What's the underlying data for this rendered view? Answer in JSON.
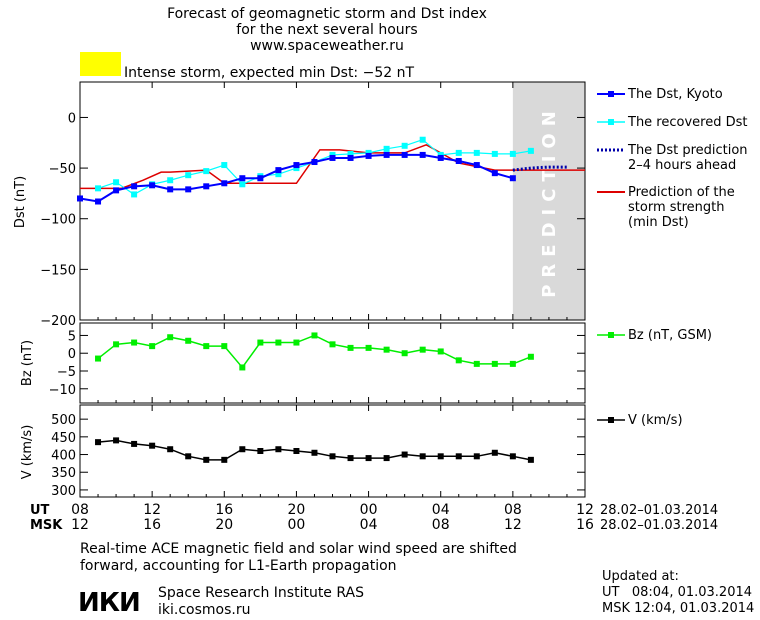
{
  "title": {
    "lines": [
      "Forecast of geomagnetic storm and Dst index",
      "for the next several hours",
      "www.spaceweather.ru"
    ]
  },
  "storm_alert": {
    "text": "Intense storm, expected min Dst: −52 nT",
    "color": "#ffff00"
  },
  "prediction_label": "PREDICTION",
  "legends": {
    "dst_kyoto": "The Dst, Kyoto",
    "dst_recovered": "The recovered Dst",
    "dst_prediction": [
      "The Dst prediction",
      "2–4 hours ahead"
    ],
    "storm_prediction": [
      "Prediction of the",
      "storm strength",
      "(min Dst)"
    ],
    "bz": "Bz (nT, GSM)",
    "v": "V (km/s)"
  },
  "time_axis": {
    "ut_label": "UT",
    "msk_label": "MSK",
    "ut_ticks": [
      "08",
      "12",
      "16",
      "20",
      "00",
      "04",
      "08",
      "12"
    ],
    "msk_ticks": [
      "12",
      "16",
      "20",
      "00",
      "04",
      "08",
      "12",
      "16"
    ],
    "date_range": "28.02–01.03.2014"
  },
  "footer": {
    "note_lines": [
      "Real-time ACE magnetic field and solar wind speed are shifted",
      "forward, accounting for L1-Earth propagation"
    ],
    "logo_text": "ИКИ",
    "institute": "Space Research Institute RAS",
    "site": "iki.cosmos.ru",
    "updated_label": "Updated at:",
    "updated_ut": "UT   08:04, 01.03.2014",
    "updated_msk": "MSK 12:04, 01.03.2014"
  },
  "colors": {
    "kyoto": "#0000ff",
    "recovered": "#00ffff",
    "prediction_dots": "#0000aa",
    "storm_line": "#dd0000",
    "bz": "#00ee00",
    "v": "#000000",
    "prediction_zone": "#d9d9d9"
  },
  "chart_data": [
    {
      "type": "line",
      "ylabel": "Dst (nT)",
      "xlim": [
        0,
        28
      ],
      "ylim": [
        -200,
        35
      ],
      "yticks": [
        0,
        -50,
        -100,
        -150,
        -200
      ],
      "prediction_start": 24,
      "series": [
        {
          "name": "The Dst, Kyoto",
          "x": [
            0,
            1,
            2,
            3,
            4,
            5,
            6,
            7,
            8,
            9,
            10,
            11,
            12,
            13,
            14,
            15,
            16,
            17,
            18,
            19,
            20,
            21,
            22,
            23,
            24
          ],
          "y": [
            -80,
            -83,
            -72,
            -68,
            -67,
            -71,
            -71,
            -68,
            -65,
            -60,
            -60,
            -52,
            -47,
            -44,
            -40,
            -40,
            -38,
            -37,
            -37,
            -37,
            -40,
            -43,
            -47,
            -55,
            -60
          ]
        },
        {
          "name": "The recovered Dst",
          "x": [
            1,
            2,
            3,
            4,
            5,
            6,
            7,
            8,
            9,
            10,
            11,
            12,
            13,
            14,
            15,
            16,
            17,
            18,
            19,
            20,
            21,
            22,
            23,
            24,
            25
          ],
          "y": [
            -70,
            -64,
            -76,
            -66,
            -62,
            -57,
            -53,
            -47,
            -66,
            -58,
            -56,
            -50,
            -44,
            -37,
            -36,
            -35,
            -31,
            -28,
            -22,
            -37,
            -35,
            -35,
            -36,
            -36,
            -33
          ]
        },
        {
          "name": "The Dst prediction 2–4 hours ahead",
          "x": [
            24,
            25,
            26,
            27
          ],
          "y": [
            -52,
            -50,
            -49,
            -49
          ]
        },
        {
          "name": "Prediction of the storm strength (min Dst)",
          "x": [
            0,
            2.3,
            3.5,
            4.5,
            5,
            7,
            8,
            12,
            13.3,
            14.4,
            16,
            18,
            19.2,
            20,
            21,
            23,
            24,
            28
          ],
          "y": [
            -70,
            -70,
            -62,
            -54,
            -54,
            -52,
            -65,
            -65,
            -32,
            -32,
            -35,
            -35,
            -27,
            -35,
            -45,
            -52,
            -52,
            -52
          ]
        }
      ]
    },
    {
      "type": "line",
      "ylabel": "Bz (nT)",
      "xlim": [
        0,
        28
      ],
      "ylim": [
        -14,
        8.5
      ],
      "yticks": [
        5,
        0,
        -5,
        -10
      ],
      "series": [
        {
          "name": "Bz (nT, GSM)",
          "x": [
            1,
            2,
            3,
            4,
            5,
            6,
            7,
            8,
            9,
            10,
            11,
            12,
            13,
            14,
            15,
            16,
            17,
            18,
            19,
            20,
            21,
            22,
            23,
            24,
            25
          ],
          "y": [
            -1.5,
            2.5,
            3,
            2,
            4.5,
            3.5,
            2,
            2,
            -4,
            3,
            3,
            3,
            5,
            2.5,
            1.5,
            1.5,
            1,
            0,
            1,
            0.5,
            -2,
            -3,
            -3,
            -3,
            -1
          ]
        }
      ]
    },
    {
      "type": "line",
      "ylabel": "V (km/s)",
      "xlim": [
        0,
        28
      ],
      "ylim": [
        280,
        540
      ],
      "yticks": [
        500,
        450,
        400,
        350,
        300
      ],
      "series": [
        {
          "name": "V (km/s)",
          "x": [
            1,
            2,
            3,
            4,
            5,
            6,
            7,
            8,
            9,
            10,
            11,
            12,
            13,
            14,
            15,
            16,
            17,
            18,
            19,
            20,
            21,
            22,
            23,
            24,
            25
          ],
          "y": [
            435,
            440,
            430,
            425,
            415,
            395,
            385,
            385,
            415,
            410,
            415,
            410,
            405,
            395,
            390,
            390,
            390,
            400,
            395,
            395,
            395,
            395,
            405,
            395,
            385
          ]
        }
      ]
    }
  ]
}
